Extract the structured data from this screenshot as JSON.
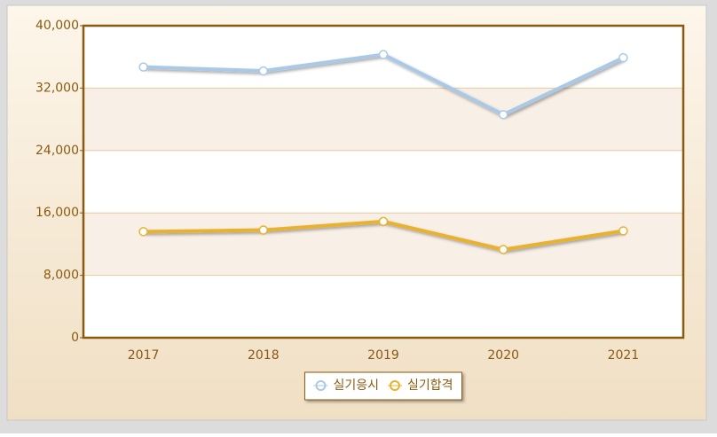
{
  "chart_data": {
    "type": "line",
    "categories": [
      "2017",
      "2018",
      "2019",
      "2020",
      "2021"
    ],
    "series": [
      {
        "name": "실기응시",
        "color": "#a9c9e6",
        "values": [
          34700,
          34200,
          36300,
          28600,
          35900
        ]
      },
      {
        "name": "실기합격",
        "color": "#e8b22e",
        "values": [
          13600,
          13800,
          14900,
          11300,
          13700
        ]
      }
    ],
    "ylim": [
      0,
      40000
    ],
    "yticks": [
      0,
      {
        "value": 8000,
        "label": "8,000"
      },
      {
        "value": 16000,
        "label": "16,000"
      },
      {
        "value": 24000,
        "label": "24,000"
      },
      {
        "value": 32000,
        "label": "32,000"
      },
      {
        "value": 40000,
        "label": "40,000"
      }
    ],
    "grid": true,
    "legend": "bottom"
  }
}
